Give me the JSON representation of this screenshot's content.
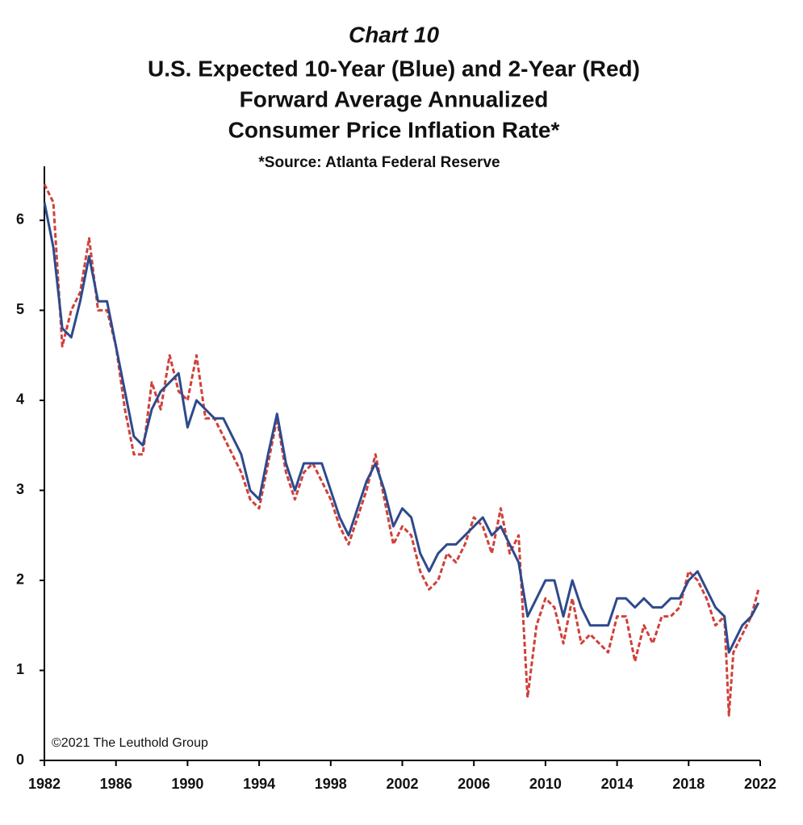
{
  "chart_data": {
    "type": "line",
    "title": "Chart 10",
    "subtitle": [
      "U.S. Expected 10-Year (Blue) and 2-Year (Red)",
      "Forward Average Annualized",
      "Consumer Price Inflation Rate*"
    ],
    "source": "*Source: Atlanta Federal Reserve",
    "copyright": "©2021 The Leuthold Group",
    "x": [
      1982,
      1982.5,
      1983,
      1983.5,
      1984,
      1984.5,
      1985,
      1985.5,
      1986,
      1986.5,
      1987,
      1987.5,
      1988,
      1988.5,
      1989,
      1989.5,
      1990,
      1990.5,
      1991,
      1991.5,
      1992,
      1992.5,
      1993,
      1993.5,
      1994,
      1994.5,
      1995,
      1995.5,
      1996,
      1996.5,
      1997,
      1997.5,
      1998,
      1998.5,
      1999,
      1999.5,
      2000,
      2000.5,
      2001,
      2001.5,
      2002,
      2002.5,
      2003,
      2003.5,
      2004,
      2004.5,
      2005,
      2005.5,
      2006,
      2006.5,
      2007,
      2007.5,
      2008,
      2008.5,
      2009,
      2009.5,
      2010,
      2010.5,
      2011,
      2011.5,
      2012,
      2012.5,
      2013,
      2013.5,
      2014,
      2014.5,
      2015,
      2015.5,
      2016,
      2016.5,
      2017,
      2017.5,
      2018,
      2018.5,
      2019,
      2019.5,
      2020,
      2020.25,
      2020.5,
      2021,
      2021.5,
      2021.9
    ],
    "series": [
      {
        "color": "#2e4a8c",
        "dash": false,
        "values": [
          6.2,
          5.7,
          4.8,
          4.7,
          5.1,
          5.6,
          5.1,
          5.1,
          4.6,
          4.1,
          3.6,
          3.5,
          3.9,
          4.1,
          4.2,
          4.3,
          3.7,
          4.0,
          3.9,
          3.8,
          3.8,
          3.6,
          3.4,
          3.0,
          2.9,
          3.4,
          3.85,
          3.3,
          3.0,
          3.3,
          3.3,
          3.3,
          3.0,
          2.7,
          2.5,
          2.8,
          3.1,
          3.3,
          3.0,
          2.6,
          2.8,
          2.7,
          2.3,
          2.1,
          2.3,
          2.4,
          2.4,
          2.5,
          2.6,
          2.7,
          2.5,
          2.6,
          2.4,
          2.2,
          1.6,
          1.8,
          2.0,
          2.0,
          1.6,
          2.0,
          1.7,
          1.5,
          1.5,
          1.5,
          1.8,
          1.8,
          1.7,
          1.8,
          1.7,
          1.7,
          1.8,
          1.8,
          2.0,
          2.1,
          1.9,
          1.7,
          1.6,
          1.2,
          1.3,
          1.5,
          1.6,
          1.75
        ]
      },
      {
        "color": "#d0403a",
        "dash": true,
        "values": [
          6.4,
          6.2,
          4.6,
          5.0,
          5.2,
          5.8,
          5.0,
          5.0,
          4.6,
          3.9,
          3.4,
          3.4,
          4.2,
          3.9,
          4.5,
          4.1,
          4.0,
          4.5,
          3.8,
          3.8,
          3.6,
          3.4,
          3.2,
          2.9,
          2.8,
          3.3,
          3.8,
          3.2,
          2.9,
          3.2,
          3.3,
          3.1,
          2.9,
          2.6,
          2.4,
          2.7,
          3.0,
          3.4,
          2.9,
          2.4,
          2.6,
          2.5,
          2.1,
          1.9,
          2.0,
          2.3,
          2.2,
          2.4,
          2.7,
          2.6,
          2.3,
          2.8,
          2.3,
          2.5,
          0.7,
          1.5,
          1.8,
          1.7,
          1.3,
          1.8,
          1.3,
          1.4,
          1.3,
          1.2,
          1.6,
          1.6,
          1.1,
          1.5,
          1.3,
          1.6,
          1.6,
          1.7,
          2.1,
          2.0,
          1.8,
          1.5,
          1.6,
          0.5,
          1.2,
          1.4,
          1.6,
          1.9
        ]
      }
    ],
    "xlim": [
      1982,
      2022
    ],
    "xticks": [
      1982,
      1986,
      1990,
      1994,
      1998,
      2002,
      2006,
      2010,
      2014,
      2018,
      2022
    ],
    "ylim": [
      0,
      6.6
    ],
    "yticks": [
      0,
      1,
      2,
      3,
      4,
      5,
      6
    ],
    "grid": false
  }
}
